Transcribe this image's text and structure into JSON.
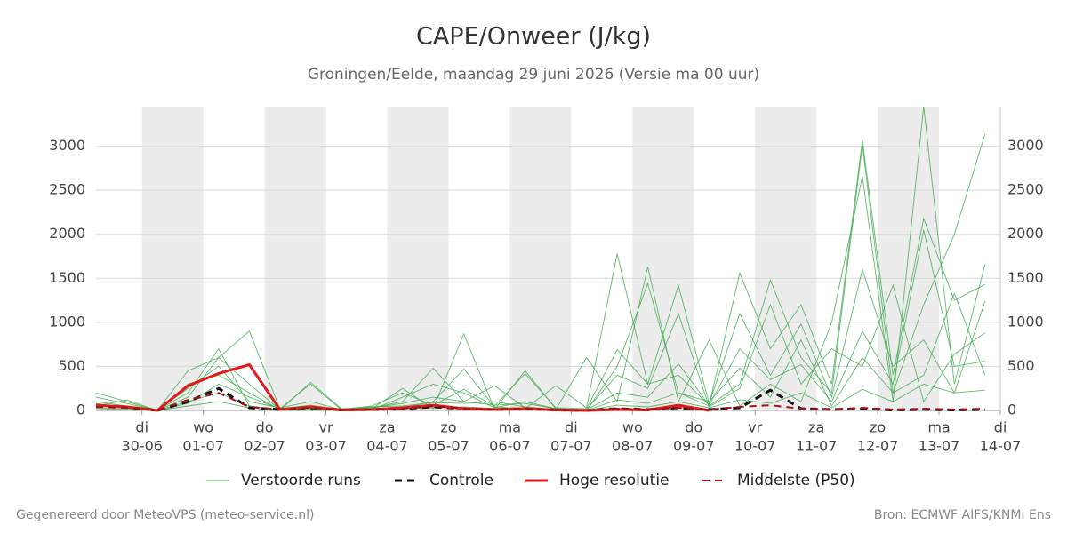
{
  "chart_data": {
    "type": "line",
    "title": "CAPE/Onweer (J/kg)",
    "subtitle": "Groningen/Eelde, maandag 29 juni 2026 (Versie ma 00 uur)",
    "footer_left": "Gegenereerd door MeteoVPS (meteo-service.nl)",
    "footer_right": "Bron: ECMWF AIFS/KNMI Ens",
    "x": [
      0.25,
      0.75,
      1.25,
      1.75,
      2.25,
      2.75,
      3.25,
      3.75,
      4.25,
      4.75,
      5.25,
      5.75,
      6.25,
      6.75,
      7.25,
      7.75,
      8.25,
      8.75,
      9.25,
      9.75,
      10.25,
      10.75,
      11.25,
      11.75,
      12.25,
      12.75,
      13.25,
      13.75,
      14.25,
      14.75
    ],
    "xlim": [
      0.25,
      15
    ],
    "xticks": [
      {
        "value": 1,
        "label": "30-06"
      },
      {
        "value": 2,
        "label": "01-07"
      },
      {
        "value": 3,
        "label": "02-07"
      },
      {
        "value": 4,
        "label": "03-07"
      },
      {
        "value": 5,
        "label": "04-07"
      },
      {
        "value": 6,
        "label": "05-07"
      },
      {
        "value": 7,
        "label": "06-07"
      },
      {
        "value": 8,
        "label": "07-07"
      },
      {
        "value": 9,
        "label": "08-07"
      },
      {
        "value": 10,
        "label": "09-07"
      },
      {
        "value": 11,
        "label": "10-07"
      },
      {
        "value": 12,
        "label": "11-07"
      },
      {
        "value": 13,
        "label": "12-07"
      },
      {
        "value": 14,
        "label": "13-07"
      },
      {
        "value": 15,
        "label": "14-07"
      }
    ],
    "xtick_weekdays": [
      "di",
      "wo",
      "do",
      "vr",
      "za",
      "zo",
      "ma",
      "di",
      "wo",
      "do",
      "vr",
      "za",
      "zo",
      "ma",
      "di"
    ],
    "ylim": [
      0,
      3450
    ],
    "yticks": [
      0,
      500,
      1000,
      1500,
      2000,
      2500,
      3000
    ],
    "right_axis": true,
    "grid": true,
    "shade_color": "#ececec",
    "ensemble": {
      "name": "Verstoorde runs",
      "color": "#3aa84a",
      "runs": [
        [
          200,
          100,
          0,
          450,
          600,
          900,
          20,
          300,
          10,
          20,
          30,
          100,
          470,
          40,
          20,
          280,
          30,
          1780,
          300,
          400,
          60,
          1560,
          700,
          1200,
          300,
          3070,
          400,
          2180,
          1250,
          1430
        ],
        [
          150,
          80,
          0,
          300,
          400,
          200,
          10,
          50,
          0,
          20,
          250,
          20,
          870,
          10,
          450,
          20,
          0,
          500,
          1440,
          200,
          50,
          300,
          1480,
          600,
          200,
          3010,
          200,
          1200,
          2000,
          3140
        ],
        [
          100,
          50,
          0,
          200,
          700,
          50,
          0,
          320,
          20,
          30,
          100,
          480,
          100,
          280,
          30,
          10,
          600,
          100,
          1630,
          100,
          800,
          50,
          300,
          100,
          1000,
          2660,
          100,
          3450,
          300,
          1660
        ],
        [
          50,
          120,
          0,
          250,
          500,
          100,
          30,
          100,
          10,
          50,
          200,
          60,
          240,
          50,
          420,
          30,
          20,
          690,
          300,
          1420,
          80,
          1100,
          400,
          980,
          150,
          1600,
          500,
          800,
          200,
          1240
        ],
        [
          80,
          30,
          0,
          150,
          600,
          300,
          10,
          40,
          20,
          10,
          150,
          300,
          200,
          30,
          100,
          20,
          10,
          400,
          250,
          1100,
          40,
          250,
          1200,
          300,
          700,
          500,
          1420,
          100,
          640,
          880
        ],
        [
          30,
          20,
          0,
          100,
          200,
          50,
          0,
          10,
          5,
          40,
          50,
          90,
          80,
          100,
          40,
          10,
          0,
          120,
          80,
          200,
          100,
          480,
          150,
          800,
          50,
          600,
          200,
          400,
          1330,
          400
        ],
        [
          20,
          10,
          0,
          50,
          100,
          30,
          0,
          5,
          0,
          10,
          20,
          30,
          40,
          20,
          30,
          10,
          0,
          60,
          40,
          100,
          30,
          120,
          80,
          200,
          30,
          240,
          100,
          300,
          200,
          230
        ],
        [
          60,
          40,
          0,
          80,
          300,
          150,
          20,
          60,
          10,
          30,
          80,
          150,
          100,
          60,
          80,
          20,
          5,
          200,
          150,
          530,
          60,
          700,
          350,
          520,
          100,
          900,
          300,
          2050,
          500,
          560
        ]
      ]
    },
    "series": [
      {
        "name": "Controle",
        "color": "#111111",
        "dash": true,
        "width": 3,
        "values": [
          50,
          40,
          0,
          100,
          250,
          30,
          10,
          30,
          5,
          10,
          20,
          40,
          20,
          10,
          20,
          5,
          0,
          20,
          10,
          30,
          10,
          30,
          230,
          20,
          10,
          20,
          5,
          10,
          5,
          10
        ]
      },
      {
        "name": "Hoge resolutie",
        "color": "#e31a1c",
        "dash": false,
        "width": 3,
        "values": [
          60,
          40,
          0,
          280,
          420,
          520,
          10,
          40,
          5,
          10,
          30,
          60,
          20,
          10,
          20,
          5,
          0,
          10,
          5,
          60,
          0,
          null,
          null,
          null,
          null,
          null,
          null,
          null,
          null,
          null
        ]
      },
      {
        "name": "Middelste (P50)",
        "color": "#a50f15",
        "dash": true,
        "width": 2,
        "values": [
          40,
          30,
          0,
          120,
          200,
          40,
          10,
          30,
          5,
          10,
          20,
          50,
          20,
          10,
          20,
          5,
          0,
          20,
          10,
          30,
          10,
          40,
          60,
          20,
          10,
          30,
          10,
          20,
          10,
          20
        ]
      }
    ]
  }
}
